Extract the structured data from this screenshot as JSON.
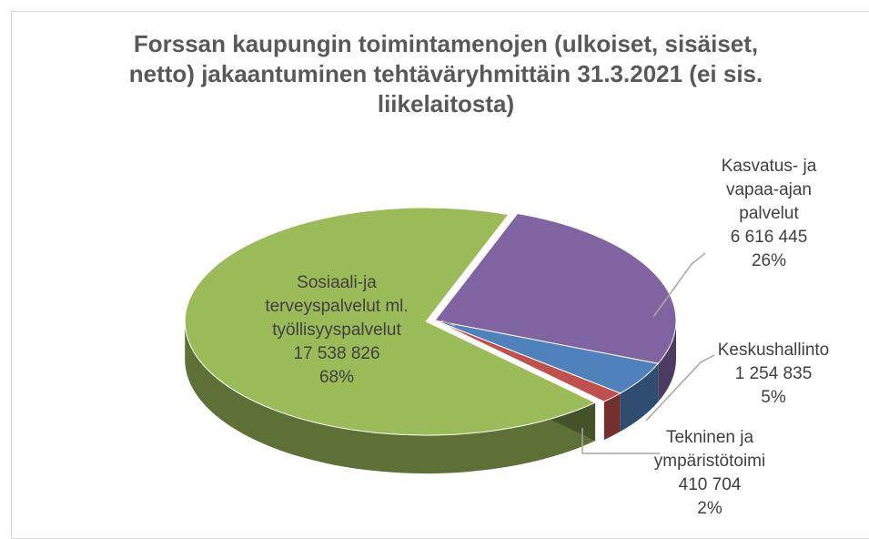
{
  "chart_data": {
    "type": "pie",
    "title": "Forssan kaupungin toimintamenojen (ulkoiset, sisäiset, netto) jakaantuminen tehtäväryhmittäin 31.3.2021 (ei sis. liikelaitosta)",
    "categories": [
      "Kasvatus- ja vapaa-ajan palvelut",
      "Keskushallinto",
      "Tekninen ja ympäristötoimi",
      "Sosiaali-ja terveyspalvelut ml. työllisyyspalvelut"
    ],
    "values": [
      6616445,
      1254835,
      410704,
      17538826
    ],
    "value_labels": [
      "6 616 445",
      "1 254 835",
      "410 704",
      "17 538 826"
    ],
    "percentages": [
      26,
      5,
      2,
      68
    ],
    "percent_labels": [
      "26%",
      "5%",
      "2%",
      "68%"
    ],
    "colors": [
      "#8064a2",
      "#4f81bd",
      "#c0504d",
      "#9bbb59"
    ]
  }
}
